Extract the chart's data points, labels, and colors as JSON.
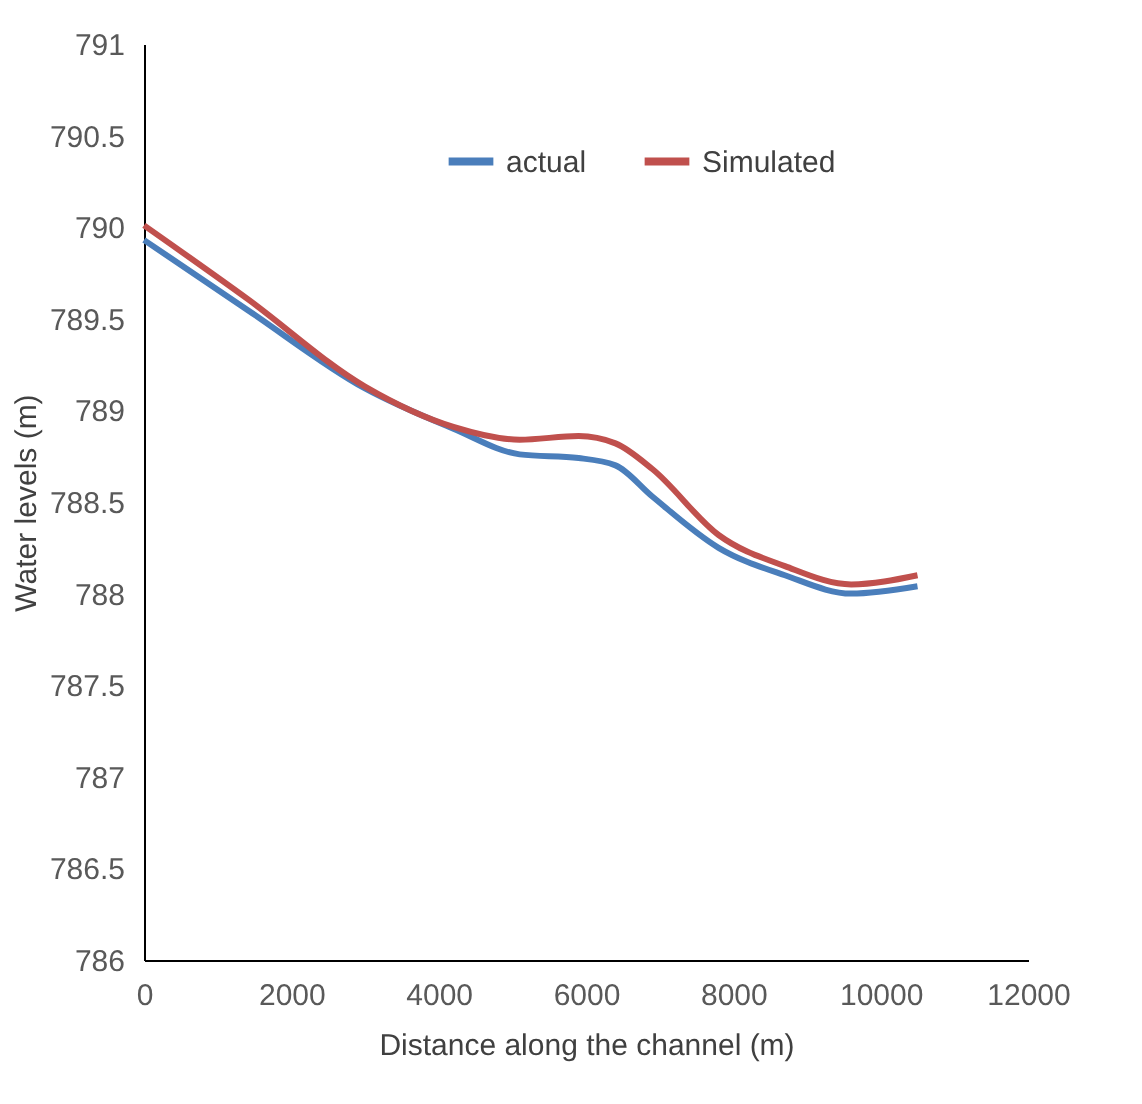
{
  "chart_data": {
    "type": "line",
    "xlabel": "Distance along the channel (m)",
    "ylabel": "Water levels (m)",
    "x": [
      0,
      1400,
      3000,
      4200,
      5100,
      5900,
      6400,
      6900,
      7800,
      8700,
      9600,
      10500
    ],
    "series": [
      {
        "name": "actual",
        "color": "#4a7ebb",
        "values": [
          789.93,
          789.55,
          789.12,
          788.9,
          788.76,
          788.74,
          788.7,
          788.53,
          788.25,
          788.1,
          788.0,
          788.04
        ]
      },
      {
        "name": "Simulated",
        "color": "#c0504d",
        "values": [
          790.01,
          789.61,
          789.13,
          788.91,
          788.84,
          788.86,
          788.82,
          788.68,
          788.32,
          788.15,
          788.05,
          788.1
        ]
      }
    ],
    "xlim": [
      0,
      12000
    ],
    "xticks": [
      0,
      2000,
      4000,
      6000,
      8000,
      10000,
      12000
    ],
    "ylim": [
      786,
      791
    ],
    "yticks": [
      786,
      786.5,
      787,
      787.5,
      788,
      788.5,
      789,
      789.5,
      790,
      790.5,
      791
    ],
    "grid": false,
    "legend": "top",
    "marker": "none",
    "line_style": "solid"
  }
}
